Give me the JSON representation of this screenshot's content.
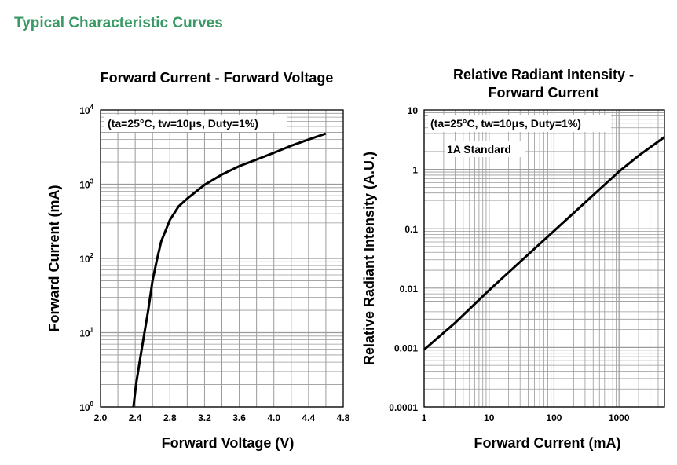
{
  "page": {
    "heading": "Typical Characteristic Curves"
  },
  "chart_data": [
    {
      "type": "line",
      "title": "Forward Current - Forward Voltage",
      "xlabel": "Forward Voltage (V)",
      "ylabel": "Forward Current (mA)",
      "xlim": [
        2.0,
        4.8
      ],
      "ylim": [
        1,
        10000
      ],
      "y_scale": "log",
      "x_ticks": [
        "2.0",
        "2.4",
        "2.8",
        "3.2",
        "3.6",
        "4.0",
        "4.4",
        "4.8"
      ],
      "y_ticks": [
        {
          "base": "10",
          "exp": "0"
        },
        {
          "base": "10",
          "exp": "1"
        },
        {
          "base": "10",
          "exp": "2"
        },
        {
          "base": "10",
          "exp": "3"
        },
        {
          "base": "10",
          "exp": "4"
        }
      ],
      "annotation": "(ta=25°C, tw=10μs, Duty=1%)",
      "grid": true,
      "series": [
        {
          "x": [
            2.38,
            2.41,
            2.45,
            2.5,
            2.55,
            2.6,
            2.65,
            2.7,
            2.8,
            2.9,
            3.0,
            3.2,
            3.4,
            3.6,
            3.8,
            4.0,
            4.2,
            4.4,
            4.6
          ],
          "values": [
            1,
            2,
            4,
            9,
            20,
            50,
            95,
            170,
            330,
            500,
            640,
            980,
            1350,
            1750,
            2150,
            2650,
            3300,
            4000,
            4800
          ]
        }
      ]
    },
    {
      "type": "line",
      "title": "Relative Radiant Intensity - Forward Current",
      "xlabel": "Forward Current (mA)",
      "ylabel": "Relative Radiant Intensity (A.U.)",
      "xlim": [
        1,
        5000
      ],
      "ylim": [
        0.0001,
        10
      ],
      "x_scale": "log",
      "y_scale": "log",
      "x_ticks": [
        "1",
        "10",
        "100",
        "1000"
      ],
      "y_ticks": [
        "0.0001",
        "0.001",
        "0.01",
        "0.1",
        "1",
        "10"
      ],
      "annotation": "(ta=25°C, tw=10μs, Duty=1%)",
      "annotation2": "1A Standard",
      "grid": true,
      "series": [
        {
          "x": [
            1,
            3,
            10,
            100,
            1000,
            2000,
            5000
          ],
          "values": [
            0.00092,
            0.0026,
            0.0092,
            0.092,
            0.92,
            1.7,
            3.5
          ]
        }
      ]
    }
  ]
}
